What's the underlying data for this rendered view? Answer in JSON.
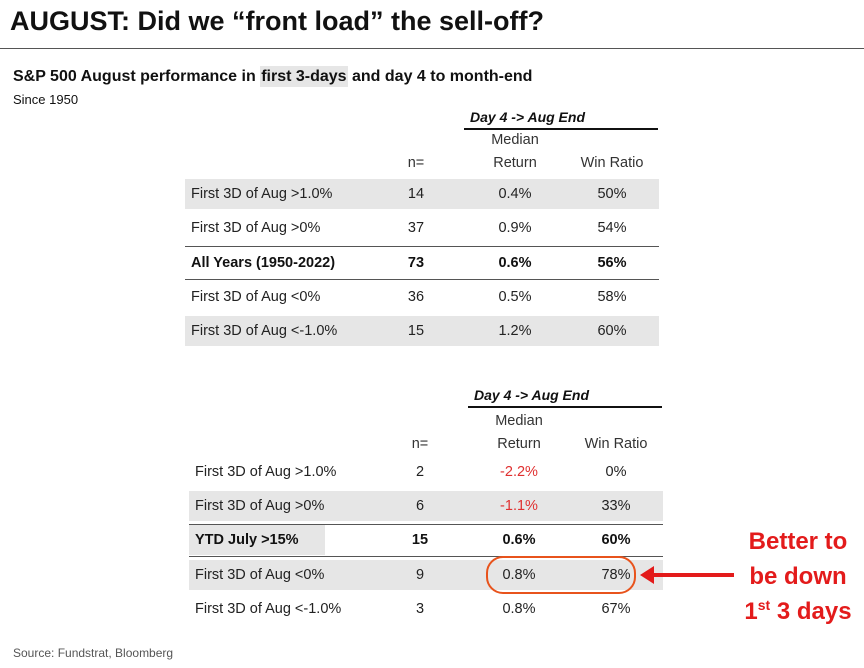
{
  "title": "AUGUST: Did we “front load” the sell-off?",
  "subtitle": {
    "pre": "S&P 500 August performance in ",
    "highlight": "first 3-days",
    "post": " and day 4 to month-end"
  },
  "since": "Since 1950",
  "table1": {
    "group_header": "Day 4 -> Aug End",
    "headers": {
      "n": "n=",
      "median_line1": "Median",
      "median_line2": "Return",
      "win": "Win Ratio"
    },
    "rows": [
      {
        "label": "First 3D of Aug >1.0%",
        "n": "14",
        "median": "0.4%",
        "win": "50%",
        "shaded": true
      },
      {
        "label": "First 3D of Aug >0%",
        "n": "37",
        "median": "0.9%",
        "win": "54%",
        "shaded": false
      },
      {
        "label": "All Years (1950-2022)",
        "n": "73",
        "median": "0.6%",
        "win": "56%",
        "bold": true
      },
      {
        "label": "First 3D of Aug <0%",
        "n": "36",
        "median": "0.5%",
        "win": "58%",
        "shaded": false
      },
      {
        "label": "First 3D of Aug <-1.0%",
        "n": "15",
        "median": "1.2%",
        "win": "60%",
        "shaded": true
      }
    ]
  },
  "table2": {
    "group_header": "Day 4 -> Aug End",
    "headers": {
      "n": "n=",
      "median_line1": "Median",
      "median_line2": "Return",
      "win": "Win Ratio"
    },
    "rows": [
      {
        "label": "First 3D of Aug >1.0%",
        "n": "2",
        "median": "-2.2%",
        "win": "0%",
        "negative": true
      },
      {
        "label": "First 3D of Aug >0%",
        "n": "6",
        "median": "-1.1%",
        "win": "33%",
        "negative": true,
        "shaded": true
      },
      {
        "label": "YTD July >15%",
        "n": "15",
        "median": "0.6%",
        "win": "60%",
        "bold": true
      },
      {
        "label": "First 3D of Aug <0%",
        "n": "9",
        "median": "0.8%",
        "win": "78%",
        "shaded": true
      },
      {
        "label": "First 3D of Aug <-1.0%",
        "n": "3",
        "median": "0.8%",
        "win": "67%"
      }
    ]
  },
  "callout": {
    "line1": "Better to",
    "line2": "be down",
    "line3_pre": "1",
    "line3_sup": "st",
    "line3_post": " 3 days"
  },
  "source": "Source: Fundstrat, Bloomberg",
  "colors": {
    "highlight_red": "#e31b1b",
    "negative_red": "#e03030",
    "circle_orange": "#e8531c",
    "shade_gray": "#e6e6e6"
  }
}
